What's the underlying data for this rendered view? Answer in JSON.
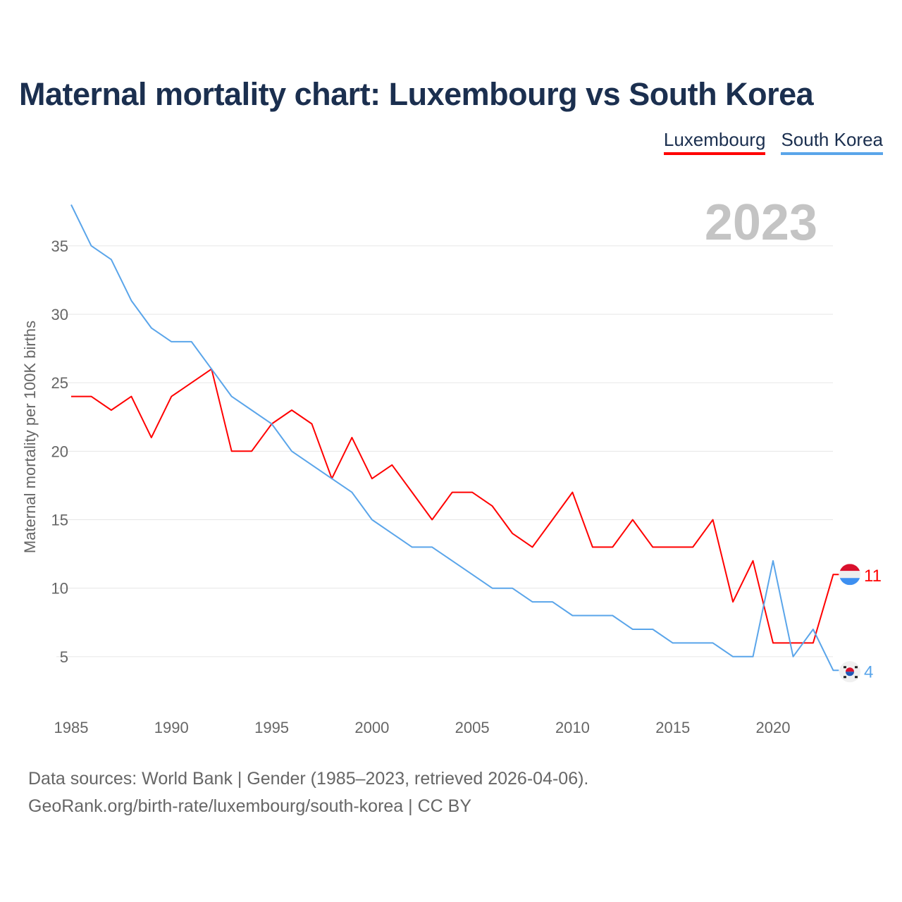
{
  "title": "Maternal mortality chart: Luxembourg vs South Korea",
  "footer": {
    "line1": "Data sources: World Bank | Gender (1985–2023, retrieved 2026-04-06).",
    "line2": "GeoRank.org/birth-rate/luxembourg/south-korea | CC BY"
  },
  "chart_data": {
    "type": "line",
    "title": "Maternal mortality chart: Luxembourg vs South Korea",
    "year_label": "2023",
    "xlabel": "",
    "ylabel": "Maternal mortality per 100K births",
    "xlim": [
      1985,
      2023
    ],
    "ylim": [
      0,
      38
    ],
    "x_ticks": [
      1985,
      1990,
      1995,
      2000,
      2005,
      2010,
      2015,
      2020
    ],
    "y_ticks": [
      5,
      10,
      15,
      20,
      25,
      30,
      35
    ],
    "grid": true,
    "legend_position": "top-right",
    "x": [
      1985,
      1986,
      1987,
      1988,
      1989,
      1990,
      1991,
      1992,
      1993,
      1994,
      1995,
      1996,
      1997,
      1998,
      1999,
      2000,
      2001,
      2002,
      2003,
      2004,
      2005,
      2006,
      2007,
      2008,
      2009,
      2010,
      2011,
      2012,
      2013,
      2014,
      2015,
      2016,
      2017,
      2018,
      2019,
      2020,
      2021,
      2022,
      2023
    ],
    "series": [
      {
        "name": "Luxembourg",
        "color": "#ff0000",
        "end_label": "11",
        "values": [
          24,
          24,
          23,
          24,
          21,
          24,
          25,
          26,
          20,
          20,
          22,
          23,
          22,
          18,
          21,
          18,
          19,
          17,
          15,
          17,
          17,
          16,
          14,
          13,
          15,
          17,
          13,
          13,
          15,
          13,
          13,
          13,
          15,
          9,
          12,
          6,
          6,
          6,
          11
        ]
      },
      {
        "name": "South Korea",
        "color": "#5aa5ea",
        "end_label": "4",
        "values": [
          38,
          35,
          34,
          31,
          29,
          28,
          28,
          26,
          24,
          23,
          22,
          20,
          19,
          18,
          17,
          15,
          14,
          13,
          13,
          12,
          11,
          10,
          10,
          9,
          9,
          8,
          8,
          8,
          7,
          7,
          6,
          6,
          6,
          5,
          5,
          12,
          5,
          7,
          4
        ]
      }
    ]
  }
}
